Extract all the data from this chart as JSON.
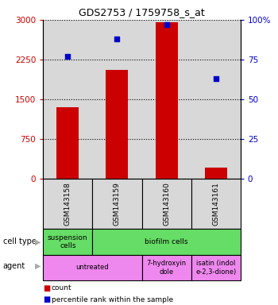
{
  "title": "GDS2753 / 1759758_s_at",
  "samples": [
    "GSM143158",
    "GSM143159",
    "GSM143160",
    "GSM143161"
  ],
  "counts": [
    1350,
    2050,
    2950,
    200
  ],
  "percentile_ranks": [
    77,
    88,
    97,
    63
  ],
  "ylim_left": [
    0,
    3000
  ],
  "ylim_right": [
    0,
    100
  ],
  "yticks_left": [
    0,
    750,
    1500,
    2250,
    3000
  ],
  "yticks_right": [
    0,
    25,
    50,
    75,
    100
  ],
  "ytick_labels_left": [
    "0",
    "750",
    "1500",
    "2250",
    "3000"
  ],
  "ytick_labels_right": [
    "0",
    "25",
    "50",
    "75",
    "100%"
  ],
  "bar_color": "#cc0000",
  "scatter_color": "#0000cc",
  "cell_type_cells": [
    {
      "text": "suspension\ncells",
      "color": "#66dd66",
      "colspan": 1
    },
    {
      "text": "biofilm cells",
      "color": "#66dd66",
      "colspan": 3
    }
  ],
  "agent_cells": [
    {
      "text": "untreated",
      "color": "#ee88ee",
      "colspan": 2
    },
    {
      "text": "7-hydroxyin\ndole",
      "color": "#ee88ee",
      "colspan": 1
    },
    {
      "text": "isatin (indol\ne-2,3-dione)",
      "color": "#ee88ee",
      "colspan": 1
    }
  ],
  "legend_items": [
    {
      "color": "#cc0000",
      "label": "count"
    },
    {
      "color": "#0000cc",
      "label": "percentile rank within the sample"
    }
  ],
  "tick_color_left": "#cc0000",
  "tick_color_right": "#0000cc",
  "background_color": "#ffffff",
  "plot_bg_color": "#d8d8d8"
}
